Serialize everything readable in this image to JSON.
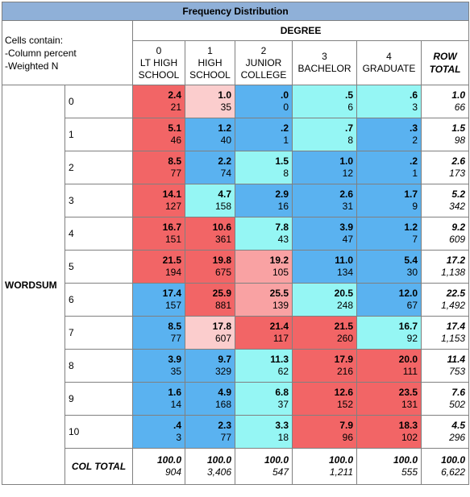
{
  "title": "Frequency Distribution",
  "cells_contain": [
    "Cells contain:",
    "-Column percent",
    "-Weighted N"
  ],
  "col_var": "DEGREE",
  "row_var": "WORDSUM",
  "columns": [
    {
      "code": "0",
      "line1": "LT HIGH",
      "line2": "SCHOOL"
    },
    {
      "code": "1",
      "line1": "HIGH",
      "line2": "SCHOOL"
    },
    {
      "code": "2",
      "line1": "JUNIOR",
      "line2": "COLLEGE"
    },
    {
      "code": "3",
      "line1": "BACHELOR",
      "line2": ""
    },
    {
      "code": "4",
      "line1": "GRADUATE",
      "line2": ""
    }
  ],
  "row_total_label": [
    "ROW",
    "TOTAL"
  ],
  "col_total_label": "COL TOTAL",
  "colors": {
    "red": "#f26566",
    "pink": "#f9a2a3",
    "light_pink": "#fbcdcd",
    "blue": "#5ab2f0",
    "cyan": "#95f6f4",
    "header_blue": "#8fb0d8"
  },
  "rows": [
    {
      "label": "0",
      "cells": [
        {
          "pct": "2.4",
          "n": "21",
          "c": "red"
        },
        {
          "pct": "1.0",
          "n": "35",
          "c": "lpink"
        },
        {
          "pct": ".0",
          "n": "0",
          "c": "blue"
        },
        {
          "pct": ".5",
          "n": "6",
          "c": "cyan"
        },
        {
          "pct": ".6",
          "n": "3",
          "c": "cyan"
        }
      ],
      "total": {
        "pct": "1.0",
        "n": "66"
      }
    },
    {
      "label": "1",
      "cells": [
        {
          "pct": "5.1",
          "n": "46",
          "c": "red"
        },
        {
          "pct": "1.2",
          "n": "40",
          "c": "blue"
        },
        {
          "pct": ".2",
          "n": "1",
          "c": "blue"
        },
        {
          "pct": ".7",
          "n": "8",
          "c": "cyan"
        },
        {
          "pct": ".3",
          "n": "2",
          "c": "blue"
        }
      ],
      "total": {
        "pct": "1.5",
        "n": "98"
      }
    },
    {
      "label": "2",
      "cells": [
        {
          "pct": "8.5",
          "n": "77",
          "c": "red"
        },
        {
          "pct": "2.2",
          "n": "74",
          "c": "blue"
        },
        {
          "pct": "1.5",
          "n": "8",
          "c": "cyan"
        },
        {
          "pct": "1.0",
          "n": "12",
          "c": "blue"
        },
        {
          "pct": ".2",
          "n": "1",
          "c": "blue"
        }
      ],
      "total": {
        "pct": "2.6",
        "n": "173"
      }
    },
    {
      "label": "3",
      "cells": [
        {
          "pct": "14.1",
          "n": "127",
          "c": "red"
        },
        {
          "pct": "4.7",
          "n": "158",
          "c": "cyan"
        },
        {
          "pct": "2.9",
          "n": "16",
          "c": "blue"
        },
        {
          "pct": "2.6",
          "n": "31",
          "c": "blue"
        },
        {
          "pct": "1.7",
          "n": "9",
          "c": "blue"
        }
      ],
      "total": {
        "pct": "5.2",
        "n": "342"
      }
    },
    {
      "label": "4",
      "cells": [
        {
          "pct": "16.7",
          "n": "151",
          "c": "red"
        },
        {
          "pct": "10.6",
          "n": "361",
          "c": "red"
        },
        {
          "pct": "7.8",
          "n": "43",
          "c": "cyan"
        },
        {
          "pct": "3.9",
          "n": "47",
          "c": "blue"
        },
        {
          "pct": "1.2",
          "n": "7",
          "c": "blue"
        }
      ],
      "total": {
        "pct": "9.2",
        "n": "609"
      }
    },
    {
      "label": "5",
      "cells": [
        {
          "pct": "21.5",
          "n": "194",
          "c": "red"
        },
        {
          "pct": "19.8",
          "n": "675",
          "c": "red"
        },
        {
          "pct": "19.2",
          "n": "105",
          "c": "pink"
        },
        {
          "pct": "11.0",
          "n": "134",
          "c": "blue"
        },
        {
          "pct": "5.4",
          "n": "30",
          "c": "blue"
        }
      ],
      "total": {
        "pct": "17.2",
        "n": "1,138"
      }
    },
    {
      "label": "6",
      "cells": [
        {
          "pct": "17.4",
          "n": "157",
          "c": "blue"
        },
        {
          "pct": "25.9",
          "n": "881",
          "c": "red"
        },
        {
          "pct": "25.5",
          "n": "139",
          "c": "pink"
        },
        {
          "pct": "20.5",
          "n": "248",
          "c": "cyan"
        },
        {
          "pct": "12.0",
          "n": "67",
          "c": "blue"
        }
      ],
      "total": {
        "pct": "22.5",
        "n": "1,492"
      }
    },
    {
      "label": "7",
      "cells": [
        {
          "pct": "8.5",
          "n": "77",
          "c": "blue"
        },
        {
          "pct": "17.8",
          "n": "607",
          "c": "lpink"
        },
        {
          "pct": "21.4",
          "n": "117",
          "c": "red"
        },
        {
          "pct": "21.5",
          "n": "260",
          "c": "red"
        },
        {
          "pct": "16.7",
          "n": "92",
          "c": "cyan"
        }
      ],
      "total": {
        "pct": "17.4",
        "n": "1,153"
      }
    },
    {
      "label": "8",
      "cells": [
        {
          "pct": "3.9",
          "n": "35",
          "c": "blue"
        },
        {
          "pct": "9.7",
          "n": "329",
          "c": "blue"
        },
        {
          "pct": "11.3",
          "n": "62",
          "c": "cyan"
        },
        {
          "pct": "17.9",
          "n": "216",
          "c": "red"
        },
        {
          "pct": "20.0",
          "n": "111",
          "c": "red"
        }
      ],
      "total": {
        "pct": "11.4",
        "n": "753"
      }
    },
    {
      "label": "9",
      "cells": [
        {
          "pct": "1.6",
          "n": "14",
          "c": "blue"
        },
        {
          "pct": "4.9",
          "n": "168",
          "c": "blue"
        },
        {
          "pct": "6.8",
          "n": "37",
          "c": "cyan"
        },
        {
          "pct": "12.6",
          "n": "152",
          "c": "red"
        },
        {
          "pct": "23.5",
          "n": "131",
          "c": "red"
        }
      ],
      "total": {
        "pct": "7.6",
        "n": "502"
      }
    },
    {
      "label": "10",
      "cells": [
        {
          "pct": ".4",
          "n": "3",
          "c": "blue"
        },
        {
          "pct": "2.3",
          "n": "77",
          "c": "blue"
        },
        {
          "pct": "3.3",
          "n": "18",
          "c": "cyan"
        },
        {
          "pct": "7.9",
          "n": "96",
          "c": "red"
        },
        {
          "pct": "18.3",
          "n": "102",
          "c": "red"
        }
      ],
      "total": {
        "pct": "4.5",
        "n": "296"
      }
    }
  ],
  "col_totals": [
    {
      "pct": "100.0",
      "n": "904"
    },
    {
      "pct": "100.0",
      "n": "3,406"
    },
    {
      "pct": "100.0",
      "n": "547"
    },
    {
      "pct": "100.0",
      "n": "1,211"
    },
    {
      "pct": "100.0",
      "n": "555"
    },
    {
      "pct": "100.0",
      "n": "6,622"
    }
  ]
}
